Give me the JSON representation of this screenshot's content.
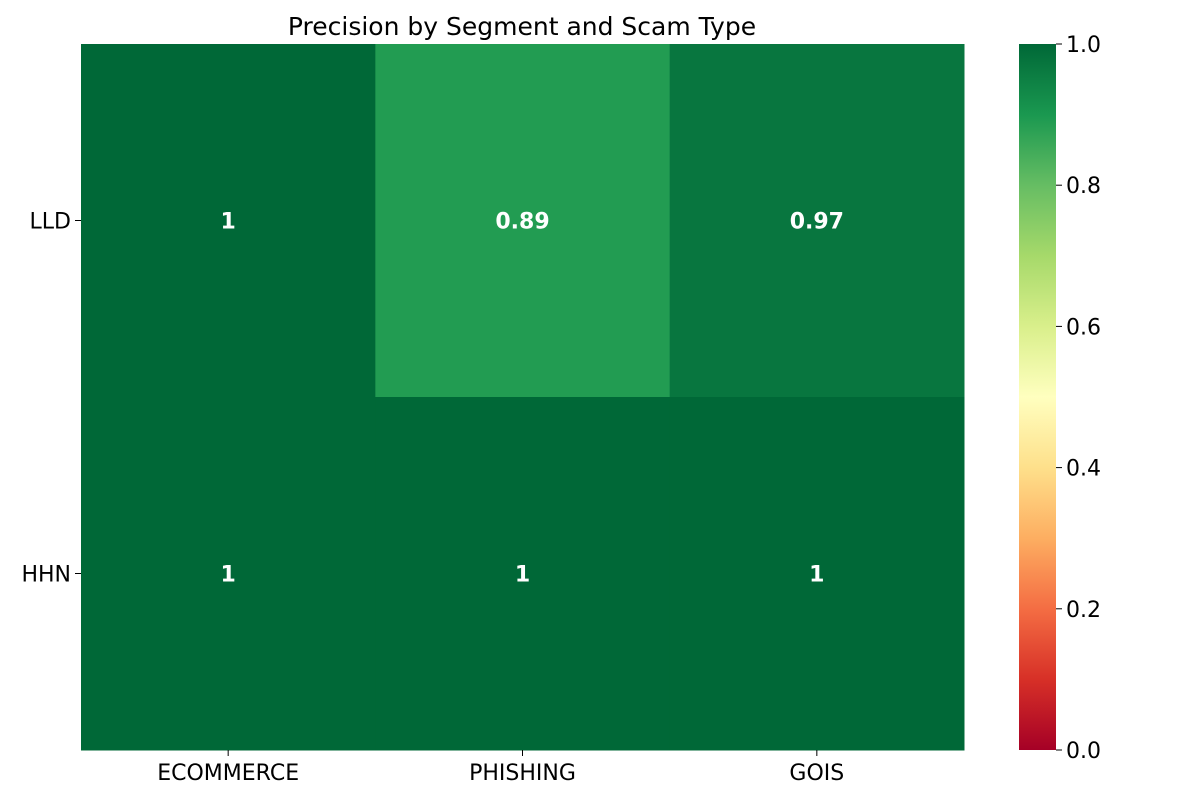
{
  "chart_data": {
    "type": "heatmap",
    "title": "Precision by Segment and Scam Type",
    "xlabel": "",
    "ylabel": "",
    "x_categories": [
      "ECOMMERCE",
      "PHISHING",
      "GOIS"
    ],
    "y_categories": [
      "LLD",
      "HHN"
    ],
    "values": [
      [
        1,
        0.89,
        0.97
      ],
      [
        1,
        1,
        1
      ]
    ],
    "annotations": [
      [
        "1",
        "0.89",
        "0.97"
      ],
      [
        "1",
        "1",
        "1"
      ]
    ],
    "colormap": "RdYlGn",
    "colorbar": {
      "range": [
        0,
        1
      ],
      "ticks": [
        0.0,
        0.2,
        0.4,
        0.6,
        0.8,
        1.0
      ],
      "tick_labels": [
        "0.0",
        "0.2",
        "0.4",
        "0.6",
        "0.8",
        "1.0"
      ]
    },
    "colors": {
      "low": "#a50026",
      "mid": "#ffffbf",
      "high": "#006837"
    }
  }
}
